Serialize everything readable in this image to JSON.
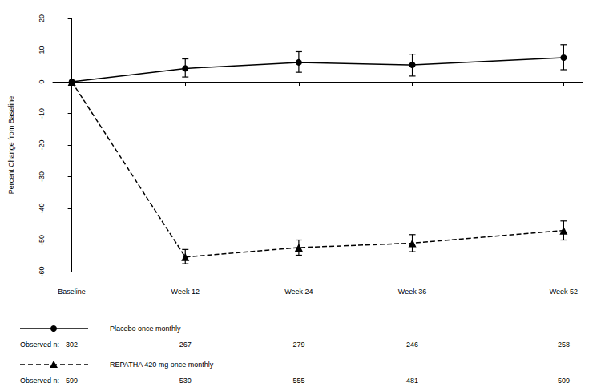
{
  "chart_data": {
    "type": "line",
    "y_label": "Percent Change from Baseline",
    "x": [
      0,
      12,
      24,
      36,
      52
    ],
    "xlim": [
      -2,
      54
    ],
    "xticks": [
      {
        "value": 0,
        "label": "Baseline"
      },
      {
        "value": 12,
        "label": "Week 12"
      },
      {
        "value": 24,
        "label": "Week 24"
      },
      {
        "value": 36,
        "label": "Week 36"
      },
      {
        "value": 52,
        "label": "Week 52"
      }
    ],
    "ylim": [
      -60,
      20
    ],
    "yticks": [
      -60,
      -50,
      -40,
      -30,
      -20,
      -10,
      0,
      10,
      20
    ],
    "grid": false,
    "n_label": "Observed n:",
    "series": [
      {
        "name": "Placebo once monthly",
        "color": "#000000",
        "marker": "circle",
        "line_style": "solid",
        "values": [
          0,
          4.2,
          6.1,
          5.3,
          7.6
        ],
        "error_low": [
          null,
          1.5,
          3.0,
          1.8,
          3.8
        ],
        "error_high": [
          null,
          7.2,
          9.5,
          8.7,
          11.7
        ],
        "observed_n": [
          302,
          267,
          279,
          246,
          258
        ]
      },
      {
        "name": "REPATHA 420 mg once monthly",
        "color": "#000000",
        "marker": "triangle",
        "line_style": "dashed",
        "values": [
          0,
          -55.4,
          -52.4,
          -51.0,
          -47.0
        ],
        "error_low": [
          null,
          -57.5,
          -54.8,
          -53.7,
          -50.0
        ],
        "error_high": [
          null,
          -53.0,
          -50.0,
          -48.3,
          -44.0
        ],
        "observed_n": [
          599,
          530,
          555,
          481,
          509
        ]
      }
    ]
  }
}
